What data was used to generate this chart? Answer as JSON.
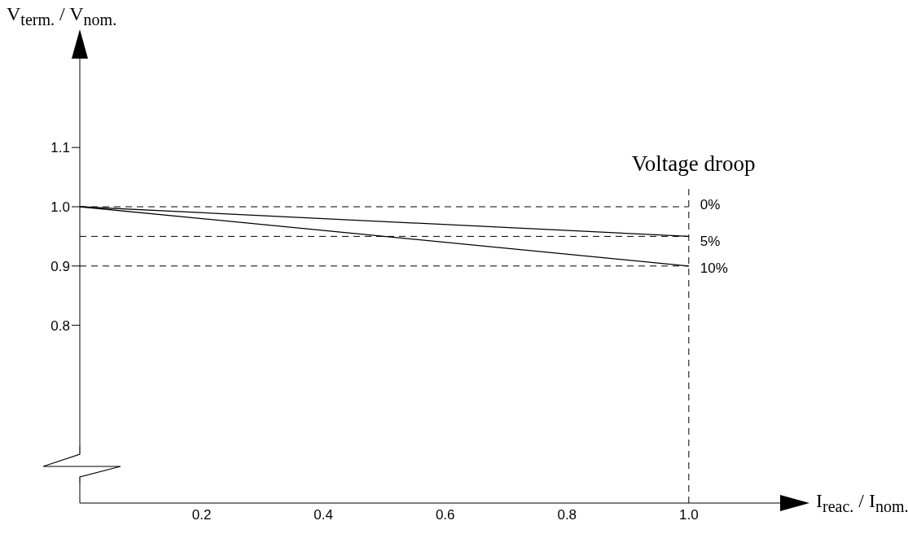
{
  "chart_data": {
    "type": "line",
    "xlabel": "I$_{reac.}$ / I$_{nom.}$",
    "ylabel": "V$_{term.}$ / V$_{nom.}$",
    "x": [
      0,
      1
    ],
    "xlim": [
      0,
      1.15
    ],
    "xticks": [
      0.2,
      0.4,
      0.6,
      0.8,
      {
        "value": 1,
        "label": "1.0"
      }
    ],
    "ylim": [
      0.5,
      1.25
    ],
    "yticks": [
      0.8,
      0.9,
      {
        "value": 1,
        "label": "1.0"
      },
      1.1
    ],
    "series": [
      {
        "name": "5%",
        "color": "#000000",
        "values": [
          1,
          0.95
        ]
      },
      {
        "name": "10%",
        "color": "#000000",
        "values": [
          1,
          0.9
        ]
      }
    ],
    "ref_lines": [
      {
        "axis": "y",
        "value": 1,
        "line_style": "dashed"
      },
      {
        "axis": "y",
        "value": 0.95,
        "line_style": "dashed"
      },
      {
        "axis": "y",
        "value": 0.9,
        "line_style": "dashed"
      },
      {
        "axis": "x",
        "value": 1,
        "line_style": "dashed"
      }
    ],
    "annotations": [
      "Voltage droop",
      {
        "text": "0%",
        "x": 1,
        "y": 1
      }
    ],
    "marker": "none",
    "line_style": "solid"
  }
}
